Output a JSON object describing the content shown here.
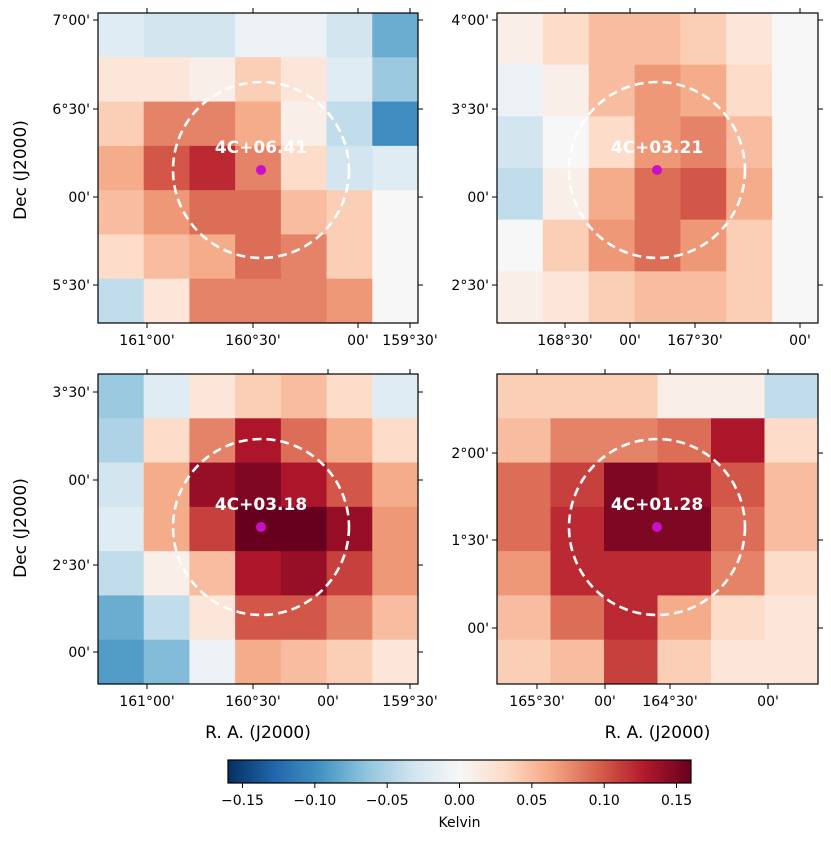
{
  "chart_data": [
    {
      "type": "heatmap",
      "source": "4C+06.41",
      "xlabel": "",
      "ylabel": "Dec (J2000)",
      "x_ticks": [
        "161°00'",
        "160°30'",
        "00'",
        "159°30'"
      ],
      "y_ticks": [
        "7°00'",
        "6°30'",
        "00'",
        "5°30'"
      ],
      "grid": [
        [
          -0.02,
          -0.03,
          -0.03,
          -0.01,
          -0.01,
          -0.03,
          -0.08
        ],
        [
          0.02,
          0.02,
          0.01,
          0.04,
          0.02,
          -0.02,
          -0.06
        ],
        [
          0.04,
          0.08,
          0.08,
          0.06,
          0.01,
          -0.04,
          -0.1
        ],
        [
          0.06,
          0.1,
          0.12,
          0.08,
          0.03,
          -0.03,
          -0.02
        ],
        [
          0.05,
          0.07,
          0.09,
          0.09,
          0.05,
          0.04,
          0.0
        ],
        [
          0.03,
          0.05,
          0.06,
          0.09,
          0.08,
          0.04,
          0.0
        ],
        [
          -0.04,
          0.02,
          0.08,
          0.08,
          0.08,
          0.07,
          0.0
        ]
      ]
    },
    {
      "type": "heatmap",
      "source": "4C+03.21",
      "xlabel": "",
      "ylabel": "",
      "x_ticks": [
        "168°30'",
        "00'",
        "167°30'",
        "00'"
      ],
      "y_ticks": [
        "4°00'",
        "3°30'",
        "00'",
        "2°30'"
      ],
      "grid": [
        [
          0.01,
          0.03,
          0.05,
          0.05,
          0.04,
          0.02,
          0.0
        ],
        [
          -0.01,
          0.01,
          0.05,
          0.07,
          0.06,
          0.03,
          0.0
        ],
        [
          -0.03,
          0.0,
          0.03,
          0.07,
          0.08,
          0.05,
          0.0
        ],
        [
          -0.04,
          0.01,
          0.06,
          0.09,
          0.1,
          0.06,
          0.0
        ],
        [
          0.0,
          0.04,
          0.07,
          0.09,
          0.07,
          0.04,
          0.0
        ],
        [
          0.01,
          0.02,
          0.04,
          0.05,
          0.05,
          0.04,
          0.0
        ]
      ]
    },
    {
      "type": "heatmap",
      "source": "4C+03.18",
      "xlabel": "R. A. (J2000)",
      "ylabel": "Dec (J2000)",
      "x_ticks": [
        "161°00'",
        "160°30'",
        "00'",
        "159°30'"
      ],
      "y_ticks": [
        "3°30'",
        "00'",
        "2°30'",
        "00'"
      ],
      "grid": [
        [
          -0.06,
          -0.02,
          0.02,
          0.04,
          0.05,
          0.03,
          -0.02
        ],
        [
          -0.05,
          0.03,
          0.08,
          0.13,
          0.09,
          0.06,
          0.03
        ],
        [
          -0.03,
          0.06,
          0.14,
          0.15,
          0.13,
          0.1,
          0.06
        ],
        [
          -0.02,
          0.06,
          0.11,
          0.16,
          0.16,
          0.14,
          0.07
        ],
        [
          -0.04,
          0.01,
          0.05,
          0.13,
          0.14,
          0.11,
          0.07
        ],
        [
          -0.08,
          -0.04,
          0.02,
          0.1,
          0.1,
          0.08,
          0.05
        ],
        [
          -0.09,
          -0.07,
          -0.01,
          0.06,
          0.05,
          0.04,
          0.02
        ]
      ]
    },
    {
      "type": "heatmap",
      "source": "4C+01.28",
      "xlabel": "R. A. (J2000)",
      "ylabel": "",
      "x_ticks": [
        "165°30'",
        "00'",
        "164°30'",
        "00'"
      ],
      "y_ticks": [
        "2°00'",
        "1°30'",
        "00'"
      ],
      "grid": [
        [
          0.04,
          0.04,
          0.04,
          0.01,
          0.01,
          -0.04
        ],
        [
          0.05,
          0.08,
          0.08,
          0.09,
          0.13,
          0.03
        ],
        [
          0.09,
          0.11,
          0.15,
          0.14,
          0.1,
          0.05
        ],
        [
          0.09,
          0.12,
          0.15,
          0.15,
          0.09,
          0.05
        ],
        [
          0.07,
          0.12,
          0.12,
          0.12,
          0.08,
          0.03
        ],
        [
          0.05,
          0.09,
          0.12,
          0.06,
          0.03,
          0.02
        ],
        [
          0.04,
          0.05,
          0.11,
          0.04,
          0.02,
          0.02
        ]
      ]
    }
  ],
  "colorbar": {
    "label": "Kelvin",
    "range": [
      -0.16,
      0.16
    ],
    "ticks": [
      "−0.15",
      "−0.10",
      "−0.05",
      "0.00",
      "0.05",
      "0.10",
      "0.15"
    ],
    "tick_values": [
      -0.15,
      -0.1,
      -0.05,
      0.0,
      0.05,
      0.1,
      0.15
    ]
  },
  "colors": {
    "marker": "#c711c9",
    "circle": "#ffffff",
    "stops": [
      "#053061",
      "#2166ac",
      "#4393c3",
      "#92c5de",
      "#d1e5f0",
      "#f7f7f7",
      "#fddbc7",
      "#f4a582",
      "#d6604d",
      "#b2182b",
      "#67001f"
    ]
  }
}
